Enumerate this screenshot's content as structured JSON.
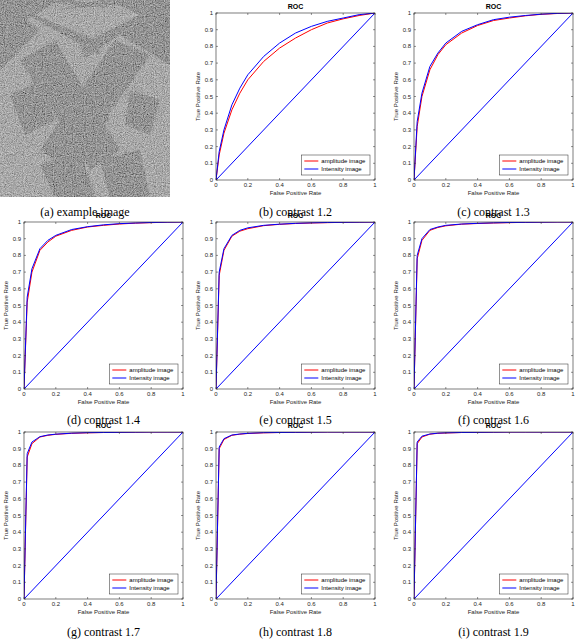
{
  "image": {
    "caption": "(a) example image"
  },
  "chart_data": [
    {
      "type": "line",
      "title": "ROC",
      "caption": "(b) contrast 1.2",
      "x_label": "False Positive Rate",
      "y_label": "True Positive Rate",
      "xlim": [
        0,
        1
      ],
      "ylim": [
        0,
        1
      ],
      "xticks": [
        0,
        0.2,
        0.4,
        0.6,
        0.8,
        1
      ],
      "yticks": [
        0,
        0.1,
        0.2,
        0.3,
        0.4,
        0.5,
        0.6,
        0.7,
        0.8,
        0.9,
        1
      ],
      "grid": false,
      "legend": "lower right",
      "x": [
        0,
        0.02,
        0.05,
        0.1,
        0.15,
        0.2,
        0.3,
        0.4,
        0.5,
        0.6,
        0.7,
        0.8,
        0.9,
        1
      ],
      "series": [
        {
          "name": "amplitude image",
          "color": "#ff0000",
          "values": [
            0,
            0.15,
            0.28,
            0.42,
            0.52,
            0.6,
            0.71,
            0.79,
            0.85,
            0.9,
            0.94,
            0.965,
            0.985,
            1
          ]
        },
        {
          "name": "Intensity image",
          "color": "#0000ff",
          "values": [
            0,
            0.17,
            0.3,
            0.45,
            0.55,
            0.63,
            0.74,
            0.82,
            0.88,
            0.92,
            0.95,
            0.97,
            0.99,
            1
          ]
        }
      ],
      "reference_line": {
        "x": [
          0,
          1
        ],
        "values": [
          0,
          1
        ],
        "color": "#0000ff"
      }
    },
    {
      "type": "line",
      "title": "ROC",
      "caption": "(c) contrast 1.3",
      "x_label": "False Positive Rate",
      "y_label": "True Positive Rate",
      "xlim": [
        0,
        1
      ],
      "ylim": [
        0,
        1
      ],
      "xticks": [
        0,
        0.2,
        0.4,
        0.6,
        0.8,
        1
      ],
      "yticks": [
        0,
        0.1,
        0.2,
        0.3,
        0.4,
        0.5,
        0.6,
        0.7,
        0.8,
        0.9,
        1
      ],
      "grid": false,
      "legend": "lower right",
      "x": [
        0,
        0.02,
        0.05,
        0.1,
        0.15,
        0.2,
        0.3,
        0.4,
        0.5,
        0.6,
        0.7,
        0.8,
        0.9,
        1
      ],
      "series": [
        {
          "name": "amplitude image",
          "color": "#ff0000",
          "values": [
            0,
            0.32,
            0.5,
            0.66,
            0.75,
            0.81,
            0.88,
            0.925,
            0.955,
            0.97,
            0.983,
            0.992,
            0.997,
            1
          ]
        },
        {
          "name": "Intensity image",
          "color": "#0000ff",
          "values": [
            0,
            0.35,
            0.52,
            0.68,
            0.76,
            0.82,
            0.89,
            0.93,
            0.96,
            0.975,
            0.985,
            0.993,
            0.998,
            1
          ]
        }
      ],
      "reference_line": {
        "x": [
          0,
          1
        ],
        "values": [
          0,
          1
        ],
        "color": "#0000ff"
      }
    },
    {
      "type": "line",
      "title": "ROC",
      "caption": "(d) contrast 1.4",
      "x_label": "False Positive Rate",
      "y_label": "True Positive Rate",
      "xlim": [
        0,
        1
      ],
      "ylim": [
        0,
        1
      ],
      "xticks": [
        0,
        0.2,
        0.4,
        0.6,
        0.8,
        1
      ],
      "yticks": [
        0,
        0.1,
        0.2,
        0.3,
        0.4,
        0.5,
        0.6,
        0.7,
        0.8,
        0.9,
        1
      ],
      "grid": false,
      "legend": "lower right",
      "x": [
        0,
        0.02,
        0.05,
        0.1,
        0.15,
        0.2,
        0.3,
        0.4,
        0.5,
        0.6,
        0.7,
        0.8,
        0.9,
        1
      ],
      "series": [
        {
          "name": "amplitude image",
          "color": "#ff0000",
          "values": [
            0,
            0.52,
            0.7,
            0.83,
            0.88,
            0.915,
            0.95,
            0.97,
            0.98,
            0.988,
            0.993,
            0.996,
            0.999,
            1
          ]
        },
        {
          "name": "Intensity image",
          "color": "#0000ff",
          "values": [
            0,
            0.55,
            0.72,
            0.84,
            0.89,
            0.92,
            0.955,
            0.972,
            0.983,
            0.99,
            0.994,
            0.997,
            0.999,
            1
          ]
        }
      ],
      "reference_line": {
        "x": [
          0,
          1
        ],
        "values": [
          0,
          1
        ],
        "color": "#0000ff"
      }
    },
    {
      "type": "line",
      "title": "ROC",
      "caption": "(e) contrast 1.5",
      "x_label": "False Positive Rate",
      "y_label": "True Positive Rate",
      "xlim": [
        0,
        1
      ],
      "ylim": [
        0,
        1
      ],
      "xticks": [
        0,
        0.2,
        0.4,
        0.6,
        0.8,
        1
      ],
      "yticks": [
        0,
        0.1,
        0.2,
        0.3,
        0.4,
        0.5,
        0.6,
        0.7,
        0.8,
        0.9,
        1
      ],
      "grid": false,
      "legend": "lower right",
      "x": [
        0,
        0.02,
        0.05,
        0.1,
        0.15,
        0.2,
        0.3,
        0.4,
        0.5,
        0.6,
        0.7,
        0.8,
        0.9,
        1
      ],
      "series": [
        {
          "name": "amplitude image",
          "color": "#ff0000",
          "values": [
            0,
            0.68,
            0.83,
            0.915,
            0.945,
            0.96,
            0.978,
            0.986,
            0.991,
            0.994,
            0.996,
            0.998,
            0.999,
            1
          ]
        },
        {
          "name": "Intensity image",
          "color": "#0000ff",
          "values": [
            0,
            0.7,
            0.84,
            0.92,
            0.95,
            0.965,
            0.98,
            0.987,
            0.992,
            0.995,
            0.997,
            0.998,
            0.999,
            1
          ]
        }
      ],
      "reference_line": {
        "x": [
          0,
          1
        ],
        "values": [
          0,
          1
        ],
        "color": "#0000ff"
      }
    },
    {
      "type": "line",
      "title": "ROC",
      "caption": "(f) contrast 1.6",
      "x_label": "False Positive Rate",
      "y_label": "True Positive Rate",
      "xlim": [
        0,
        1
      ],
      "ylim": [
        0,
        1
      ],
      "xticks": [
        0,
        0.2,
        0.4,
        0.6,
        0.8,
        1
      ],
      "yticks": [
        0,
        0.1,
        0.2,
        0.3,
        0.4,
        0.5,
        0.6,
        0.7,
        0.8,
        0.9,
        1
      ],
      "grid": false,
      "legend": "lower right",
      "x": [
        0,
        0.02,
        0.05,
        0.1,
        0.15,
        0.2,
        0.3,
        0.4,
        0.5,
        0.6,
        0.7,
        0.8,
        0.9,
        1
      ],
      "series": [
        {
          "name": "amplitude image",
          "color": "#ff0000",
          "values": [
            0,
            0.78,
            0.89,
            0.95,
            0.967,
            0.977,
            0.987,
            0.991,
            0.994,
            0.996,
            0.998,
            0.999,
            1,
            1
          ]
        },
        {
          "name": "Intensity image",
          "color": "#0000ff",
          "values": [
            0,
            0.8,
            0.9,
            0.955,
            0.97,
            0.98,
            0.988,
            0.992,
            0.995,
            0.997,
            0.998,
            0.999,
            1,
            1
          ]
        }
      ],
      "reference_line": {
        "x": [
          0,
          1
        ],
        "values": [
          0,
          1
        ],
        "color": "#0000ff"
      }
    },
    {
      "type": "line",
      "title": "ROC",
      "caption": "(g) contrast 1.7",
      "x_label": "False Positive Rate",
      "y_label": "True Positive Rate",
      "xlim": [
        0,
        1
      ],
      "ylim": [
        0,
        1
      ],
      "xticks": [
        0,
        0.2,
        0.4,
        0.6,
        0.8,
        1
      ],
      "yticks": [
        0,
        0.1,
        0.2,
        0.3,
        0.4,
        0.5,
        0.6,
        0.7,
        0.8,
        0.9,
        1
      ],
      "grid": false,
      "legend": "lower right",
      "x": [
        0,
        0.02,
        0.05,
        0.1,
        0.15,
        0.2,
        0.3,
        0.4,
        0.5,
        0.6,
        0.7,
        0.8,
        0.9,
        1
      ],
      "series": [
        {
          "name": "amplitude image",
          "color": "#ff0000",
          "values": [
            0,
            0.85,
            0.93,
            0.97,
            0.98,
            0.986,
            0.992,
            0.995,
            0.997,
            0.998,
            0.999,
            1,
            1,
            1
          ]
        },
        {
          "name": "Intensity image",
          "color": "#0000ff",
          "values": [
            0,
            0.87,
            0.94,
            0.972,
            0.982,
            0.987,
            0.993,
            0.996,
            0.997,
            0.998,
            0.999,
            1,
            1,
            1
          ]
        }
      ],
      "reference_line": {
        "x": [
          0,
          1
        ],
        "values": [
          0,
          1
        ],
        "color": "#0000ff"
      }
    },
    {
      "type": "line",
      "title": "ROC",
      "caption": "(h) contrast 1.8",
      "x_label": "False Positive Rate",
      "y_label": "True Positive Rate",
      "xlim": [
        0,
        1
      ],
      "ylim": [
        0,
        1
      ],
      "xticks": [
        0,
        0.2,
        0.4,
        0.6,
        0.8,
        1
      ],
      "yticks": [
        0,
        0.1,
        0.2,
        0.3,
        0.4,
        0.5,
        0.6,
        0.7,
        0.8,
        0.9,
        1
      ],
      "grid": false,
      "legend": "lower right",
      "x": [
        0,
        0.02,
        0.05,
        0.1,
        0.15,
        0.2,
        0.3,
        0.4,
        0.5,
        0.6,
        0.7,
        0.8,
        0.9,
        1
      ],
      "series": [
        {
          "name": "amplitude image",
          "color": "#ff0000",
          "values": [
            0,
            0.9,
            0.955,
            0.98,
            0.987,
            0.991,
            0.995,
            0.997,
            0.998,
            0.999,
            1,
            1,
            1,
            1
          ]
        },
        {
          "name": "Intensity image",
          "color": "#0000ff",
          "values": [
            0,
            0.91,
            0.96,
            0.982,
            0.988,
            0.992,
            0.996,
            0.997,
            0.998,
            0.999,
            1,
            1,
            1,
            1
          ]
        }
      ],
      "reference_line": {
        "x": [
          0,
          1
        ],
        "values": [
          0,
          1
        ],
        "color": "#0000ff"
      }
    },
    {
      "type": "line",
      "title": "ROC",
      "caption": "(i) contrast 1.9",
      "x_label": "False Positive Rate",
      "y_label": "True Positive Rate",
      "xlim": [
        0,
        1
      ],
      "ylim": [
        0,
        1
      ],
      "xticks": [
        0,
        0.2,
        0.4,
        0.6,
        0.8,
        1
      ],
      "yticks": [
        0,
        0.1,
        0.2,
        0.3,
        0.4,
        0.5,
        0.6,
        0.7,
        0.8,
        0.9,
        1
      ],
      "grid": false,
      "legend": "lower right",
      "x": [
        0,
        0.02,
        0.05,
        0.1,
        0.15,
        0.2,
        0.3,
        0.4,
        0.5,
        0.6,
        0.7,
        0.8,
        0.9,
        1
      ],
      "series": [
        {
          "name": "amplitude image",
          "color": "#ff0000",
          "values": [
            0,
            0.93,
            0.97,
            0.987,
            0.992,
            0.994,
            0.997,
            0.998,
            0.999,
            1,
            1,
            1,
            1,
            1
          ]
        },
        {
          "name": "Intensity image",
          "color": "#0000ff",
          "values": [
            0,
            0.94,
            0.975,
            0.988,
            0.993,
            0.995,
            0.997,
            0.998,
            0.999,
            1,
            1,
            1,
            1,
            1
          ]
        }
      ],
      "reference_line": {
        "x": [
          0,
          1
        ],
        "values": [
          0,
          1
        ],
        "color": "#0000ff"
      }
    }
  ]
}
